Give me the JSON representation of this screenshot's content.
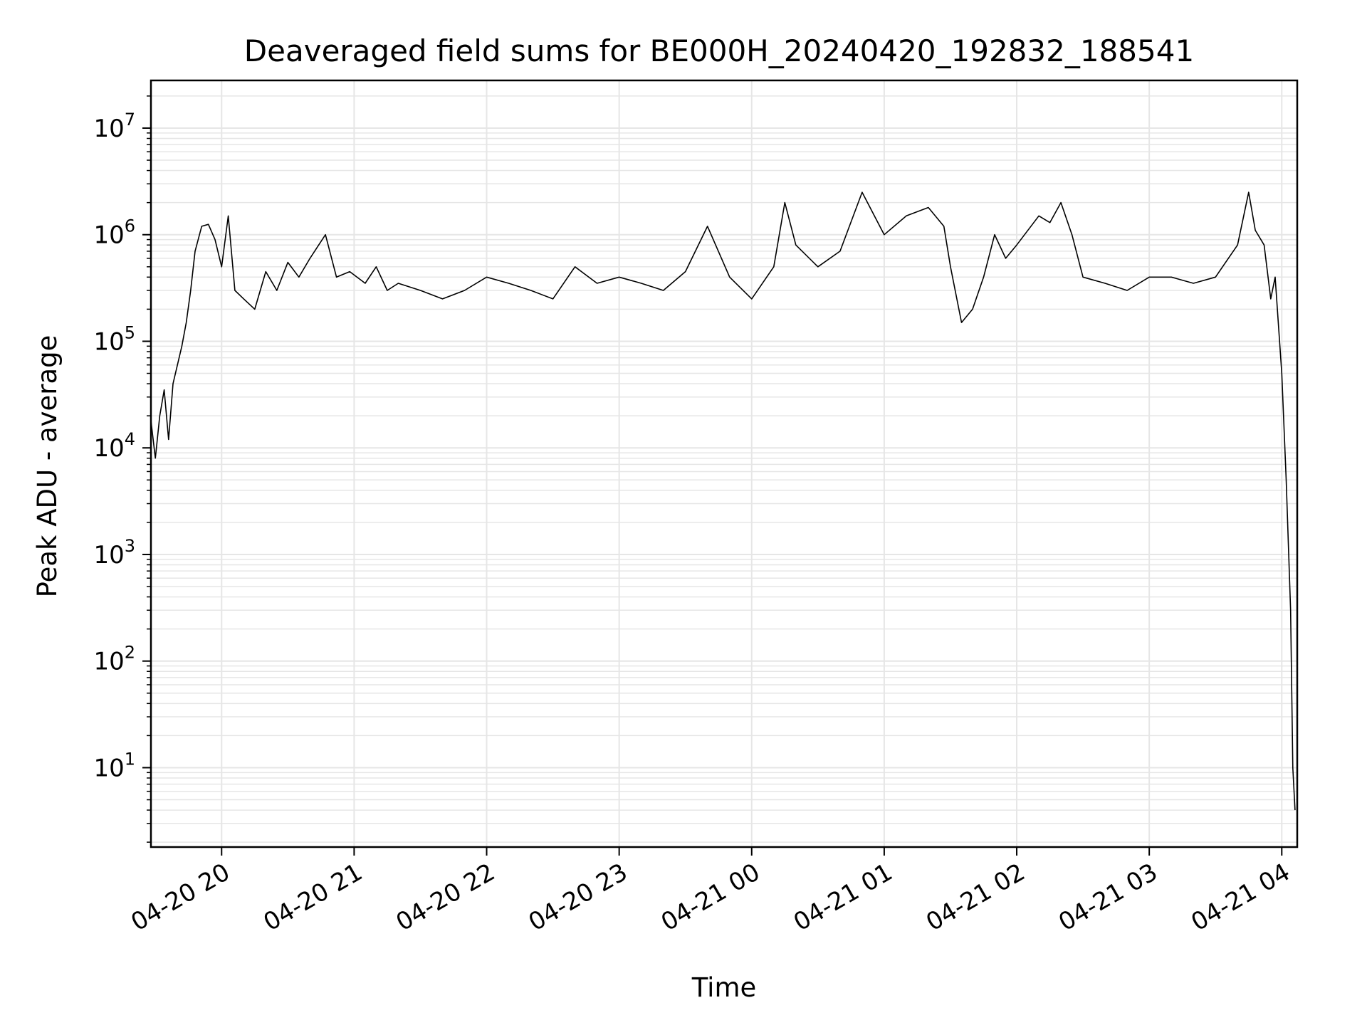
{
  "chart_data": {
    "type": "line",
    "title": "Deaveraged field sums for BE000H_20240420_192832_188541",
    "xlabel": "Time",
    "ylabel": "Peak ADU - average",
    "yscale": "log",
    "grid": true,
    "line_color": "#000000",
    "grid_color": "#e6e6e6",
    "xlim": [
      "2024-04-20 19:28",
      "2024-04-21 04:07"
    ],
    "ylim": [
      1.8,
      28000000
    ],
    "x_ticks": [
      {
        "value": "2024-04-20 20:00",
        "label": "04-20 20"
      },
      {
        "value": "2024-04-20 21:00",
        "label": "04-20 21"
      },
      {
        "value": "2024-04-20 22:00",
        "label": "04-20 22"
      },
      {
        "value": "2024-04-20 23:00",
        "label": "04-20 23"
      },
      {
        "value": "2024-04-21 00:00",
        "label": "04-21 00"
      },
      {
        "value": "2024-04-21 01:00",
        "label": "04-21 01"
      },
      {
        "value": "2024-04-21 02:00",
        "label": "04-21 02"
      },
      {
        "value": "2024-04-21 03:00",
        "label": "04-21 03"
      },
      {
        "value": "2024-04-21 04:00",
        "label": "04-21 04"
      }
    ],
    "y_ticks": [
      {
        "value": 10,
        "base": "10",
        "exp": "1"
      },
      {
        "value": 100,
        "base": "10",
        "exp": "2"
      },
      {
        "value": 1000,
        "base": "10",
        "exp": "3"
      },
      {
        "value": 10000,
        "base": "10",
        "exp": "4"
      },
      {
        "value": 100000,
        "base": "10",
        "exp": "5"
      },
      {
        "value": 1000000,
        "base": "10",
        "exp": "6"
      },
      {
        "value": 10000000,
        "base": "10",
        "exp": "7"
      }
    ],
    "series": [
      {
        "points": [
          [
            "2024-04-20 19:28",
            18000
          ],
          [
            "2024-04-20 19:30",
            8000
          ],
          [
            "2024-04-20 19:32",
            20000
          ],
          [
            "2024-04-20 19:34",
            35000
          ],
          [
            "2024-04-20 19:36",
            12000
          ],
          [
            "2024-04-20 19:38",
            40000
          ],
          [
            "2024-04-20 19:40",
            60000
          ],
          [
            "2024-04-20 19:42",
            90000
          ],
          [
            "2024-04-20 19:44",
            150000
          ],
          [
            "2024-04-20 19:46",
            300000
          ],
          [
            "2024-04-20 19:48",
            700000
          ],
          [
            "2024-04-20 19:51",
            1200000
          ],
          [
            "2024-04-20 19:54",
            1250000
          ],
          [
            "2024-04-20 19:57",
            900000
          ],
          [
            "2024-04-20 20:00",
            500000
          ],
          [
            "2024-04-20 20:03",
            1500000
          ],
          [
            "2024-04-20 20:06",
            300000
          ],
          [
            "2024-04-20 20:10",
            250000
          ],
          [
            "2024-04-20 20:15",
            200000
          ],
          [
            "2024-04-20 20:20",
            450000
          ],
          [
            "2024-04-20 20:25",
            300000
          ],
          [
            "2024-04-20 20:30",
            550000
          ],
          [
            "2024-04-20 20:35",
            400000
          ],
          [
            "2024-04-20 20:40",
            600000
          ],
          [
            "2024-04-20 20:47",
            1000000
          ],
          [
            "2024-04-20 20:52",
            400000
          ],
          [
            "2024-04-20 20:58",
            450000
          ],
          [
            "2024-04-20 21:05",
            350000
          ],
          [
            "2024-04-20 21:10",
            500000
          ],
          [
            "2024-04-20 21:15",
            300000
          ],
          [
            "2024-04-20 21:20",
            350000
          ],
          [
            "2024-04-20 21:30",
            300000
          ],
          [
            "2024-04-20 21:40",
            250000
          ],
          [
            "2024-04-20 21:50",
            300000
          ],
          [
            "2024-04-20 22:00",
            400000
          ],
          [
            "2024-04-20 22:10",
            350000
          ],
          [
            "2024-04-20 22:20",
            300000
          ],
          [
            "2024-04-20 22:30",
            250000
          ],
          [
            "2024-04-20 22:40",
            500000
          ],
          [
            "2024-04-20 22:50",
            350000
          ],
          [
            "2024-04-20 23:00",
            400000
          ],
          [
            "2024-04-20 23:10",
            350000
          ],
          [
            "2024-04-20 23:20",
            300000
          ],
          [
            "2024-04-20 23:30",
            450000
          ],
          [
            "2024-04-20 23:40",
            1200000
          ],
          [
            "2024-04-20 23:50",
            400000
          ],
          [
            "2024-04-21 00:00",
            250000
          ],
          [
            "2024-04-21 00:10",
            500000
          ],
          [
            "2024-04-21 00:15",
            2000000
          ],
          [
            "2024-04-21 00:20",
            800000
          ],
          [
            "2024-04-21 00:30",
            500000
          ],
          [
            "2024-04-21 00:40",
            700000
          ],
          [
            "2024-04-21 00:50",
            2500000
          ],
          [
            "2024-04-21 01:00",
            1000000
          ],
          [
            "2024-04-21 01:10",
            1500000
          ],
          [
            "2024-04-21 01:20",
            1800000
          ],
          [
            "2024-04-21 01:27",
            1200000
          ],
          [
            "2024-04-21 01:30",
            500000
          ],
          [
            "2024-04-21 01:35",
            150000
          ],
          [
            "2024-04-21 01:40",
            200000
          ],
          [
            "2024-04-21 01:45",
            400000
          ],
          [
            "2024-04-21 01:50",
            1000000
          ],
          [
            "2024-04-21 01:55",
            600000
          ],
          [
            "2024-04-21 02:00",
            800000
          ],
          [
            "2024-04-21 02:10",
            1500000
          ],
          [
            "2024-04-21 02:15",
            1300000
          ],
          [
            "2024-04-21 02:20",
            2000000
          ],
          [
            "2024-04-21 02:25",
            1000000
          ],
          [
            "2024-04-21 02:30",
            400000
          ],
          [
            "2024-04-21 02:40",
            350000
          ],
          [
            "2024-04-21 02:50",
            300000
          ],
          [
            "2024-04-21 03:00",
            400000
          ],
          [
            "2024-04-21 03:10",
            400000
          ],
          [
            "2024-04-21 03:20",
            350000
          ],
          [
            "2024-04-21 03:30",
            400000
          ],
          [
            "2024-04-21 03:40",
            800000
          ],
          [
            "2024-04-21 03:45",
            2500000
          ],
          [
            "2024-04-21 03:48",
            1100000
          ],
          [
            "2024-04-21 03:52",
            800000
          ],
          [
            "2024-04-21 03:55",
            250000
          ],
          [
            "2024-04-21 03:57",
            400000
          ],
          [
            "2024-04-21 04:00",
            50000
          ],
          [
            "2024-04-21 04:02",
            5000
          ],
          [
            "2024-04-21 04:04",
            300
          ],
          [
            "2024-04-21 04:05",
            10
          ],
          [
            "2024-04-21 04:06",
            4
          ]
        ]
      }
    ]
  }
}
